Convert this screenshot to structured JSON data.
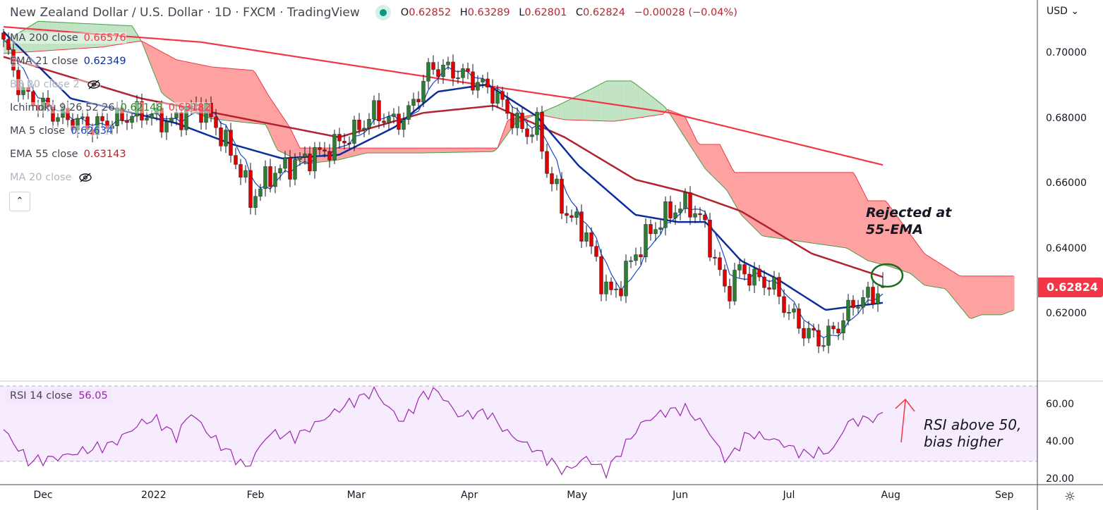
{
  "header": {
    "title": "New Zealand Dollar / U.S. Dollar · 1D · FXCM · TradingView",
    "ohlc": {
      "o_label": "O",
      "o": "0.62852",
      "h_label": "H",
      "h": "0.63289",
      "l_label": "L",
      "l": "0.62801",
      "c_label": "C",
      "c": "0.62824",
      "change": "−0.00028 (−0.04%)"
    }
  },
  "legend": [
    {
      "name": "MA 200 close",
      "value": "0.66576",
      "color": "#f23645"
    },
    {
      "name": "EMA 21 close",
      "value": "0.62349",
      "color": "#0c2d9c"
    },
    {
      "name": "BB 20 close 2",
      "value": "",
      "hidden": true
    },
    {
      "name": "Ichimoku 9 26 52 26",
      "value": "0.62148",
      "value2": "0.63182",
      "color": "#1b8a1b",
      "color2": "#f23645"
    },
    {
      "name": "MA 5 close",
      "value": "0.62634",
      "color": "#1848cc"
    },
    {
      "name": "EMA 55 close",
      "value": "0.63143",
      "color": "#b2222f"
    },
    {
      "name": "MA 20 close",
      "value": "",
      "hidden": true
    }
  ],
  "rsi_legend": {
    "name": "RSI 14 close",
    "value": "56.05",
    "color": "#9c27b0"
  },
  "currency": "USD",
  "last_price": "0.62824",
  "annotations": {
    "ema_note_1": "Rejected at",
    "ema_note_2": "55-EMA",
    "rsi_note_1": "RSI above 50,",
    "rsi_note_2": "bias higher"
  },
  "chart_data": {
    "type": "candlestick",
    "title": "New Zealand Dollar / U.S. Dollar · 1D · FXCM",
    "price_axis": {
      "ticks": [
        "0.70000",
        "0.68000",
        "0.66000",
        "0.64000",
        "0.62000"
      ],
      "tick_values": [
        0.7,
        0.68,
        0.66,
        0.64,
        0.62
      ],
      "range": [
        0.598,
        0.718
      ]
    },
    "rsi_axis": {
      "ticks": [
        "60.00",
        "40.00",
        "20.00"
      ],
      "tick_values": [
        60,
        40,
        20
      ],
      "band": [
        30,
        70
      ]
    },
    "time_axis": {
      "labels": [
        "Dec",
        "2022",
        "Feb",
        "Mar",
        "Apr",
        "May",
        "Jun",
        "Jul",
        "Aug",
        "Sep"
      ],
      "label_index": [
        8,
        30.4,
        51,
        71.4,
        94.3,
        116.1,
        137,
        159,
        179.6,
        202.6
      ]
    },
    "candle_count": 179,
    "close_keypoints": [
      [
        0,
        0.7035
      ],
      [
        3.6,
        0.688
      ],
      [
        10.7,
        0.681
      ],
      [
        17.9,
        0.6775
      ],
      [
        27.9,
        0.682
      ],
      [
        33.6,
        0.6786
      ],
      [
        39.3,
        0.684
      ],
      [
        42.1,
        0.68
      ],
      [
        47.9,
        0.6645
      ],
      [
        50,
        0.655
      ],
      [
        53.6,
        0.6624
      ],
      [
        59.3,
        0.6667
      ],
      [
        65,
        0.67
      ],
      [
        70.7,
        0.6753
      ],
      [
        75,
        0.682
      ],
      [
        79.3,
        0.6786
      ],
      [
        82.1,
        0.682
      ],
      [
        86.4,
        0.6959
      ],
      [
        90.7,
        0.6948
      ],
      [
        94.3,
        0.6926
      ],
      [
        99.3,
        0.688
      ],
      [
        102.1,
        0.682
      ],
      [
        105.7,
        0.6753
      ],
      [
        107.9,
        0.6786
      ],
      [
        110,
        0.6645
      ],
      [
        113.6,
        0.6516
      ],
      [
        117.9,
        0.645
      ],
      [
        121.4,
        0.6289
      ],
      [
        123.6,
        0.6256
      ],
      [
        127.1,
        0.6364
      ],
      [
        130.7,
        0.645
      ],
      [
        135,
        0.6516
      ],
      [
        138.6,
        0.6537
      ],
      [
        141.4,
        0.649
      ],
      [
        143.6,
        0.6386
      ],
      [
        146.4,
        0.6256
      ],
      [
        148.6,
        0.634
      ],
      [
        152.1,
        0.631
      ],
      [
        155.7,
        0.6289
      ],
      [
        158.6,
        0.6213
      ],
      [
        162.1,
        0.6148
      ],
      [
        165.7,
        0.6116
      ],
      [
        169.3,
        0.617
      ],
      [
        172.1,
        0.6235
      ],
      [
        175.7,
        0.6256
      ],
      [
        178,
        0.62824
      ]
    ],
    "last_candle": {
      "open": 0.62852,
      "high": 0.63289,
      "low": 0.62801,
      "close": 0.62824
    },
    "series": [
      {
        "name": "MA 200",
        "color": "#f23645",
        "points": [
          [
            0,
            0.7082
          ],
          [
            40,
            0.7035
          ],
          [
            94.3,
            0.6909
          ],
          [
            135,
            0.6818
          ],
          [
            178,
            0.6658
          ]
        ]
      },
      {
        "name": "EMA 55",
        "color": "#b2222f",
        "points": [
          [
            0,
            0.699
          ],
          [
            27.9,
            0.6862
          ],
          [
            67.9,
            0.6743
          ],
          [
            85,
            0.6818
          ],
          [
            99.3,
            0.684
          ],
          [
            113.6,
            0.6743
          ],
          [
            127.9,
            0.6613
          ],
          [
            139.3,
            0.657
          ],
          [
            149.3,
            0.6516
          ],
          [
            163.6,
            0.6386
          ],
          [
            178,
            0.6314
          ]
        ]
      },
      {
        "name": "EMA 21",
        "color": "#0c2d9c",
        "points": [
          [
            0,
            0.7067
          ],
          [
            13.6,
            0.6862
          ],
          [
            35,
            0.6786
          ],
          [
            46.4,
            0.6721
          ],
          [
            56.4,
            0.6678
          ],
          [
            67.9,
            0.6689
          ],
          [
            79.3,
            0.6775
          ],
          [
            87.9,
            0.6883
          ],
          [
            97.9,
            0.6905
          ],
          [
            107.9,
            0.6808
          ],
          [
            116.4,
            0.6656
          ],
          [
            127.9,
            0.6505
          ],
          [
            136.4,
            0.6483
          ],
          [
            142.1,
            0.6483
          ],
          [
            149.3,
            0.6364
          ],
          [
            156.4,
            0.631
          ],
          [
            166.4,
            0.6213
          ],
          [
            172.1,
            0.6224
          ],
          [
            178,
            0.6235
          ]
        ]
      }
    ],
    "ichimoku": {
      "span_a": [
        [
          0,
          0.7035
        ],
        [
          7,
          0.7099
        ],
        [
          26,
          0.7085
        ],
        [
          27.9,
          0.7039
        ],
        [
          32.1,
          0.6877
        ],
        [
          36.4,
          0.683
        ],
        [
          42.1,
          0.68
        ],
        [
          47.9,
          0.679
        ],
        [
          53.1,
          0.6782
        ],
        [
          55.4,
          0.6704
        ],
        [
          61.1,
          0.6661
        ],
        [
          67.9,
          0.6674
        ],
        [
          73.6,
          0.6695
        ],
        [
          85,
          0.6695
        ],
        [
          99.3,
          0.6699
        ],
        [
          100,
          0.671
        ],
        [
          103.6,
          0.6786
        ],
        [
          112.1,
          0.684
        ],
        [
          117.9,
          0.6883
        ],
        [
          122.1,
          0.6916
        ],
        [
          127.1,
          0.6916
        ],
        [
          130,
          0.6883
        ],
        [
          133.6,
          0.684
        ],
        [
          134.3,
          0.6829
        ],
        [
          137.9,
          0.6743
        ],
        [
          142.1,
          0.6645
        ],
        [
          146.4,
          0.6581
        ],
        [
          149.3,
          0.6505
        ],
        [
          153.6,
          0.644
        ],
        [
          170.7,
          0.6403
        ],
        [
          175,
          0.6364
        ],
        [
          179.3,
          0.6347
        ],
        [
          183.6,
          0.6325
        ],
        [
          186.4,
          0.6289
        ],
        [
          190.7,
          0.6278
        ],
        [
          195.7,
          0.6185
        ],
        [
          197.9,
          0.6198
        ],
        [
          202.1,
          0.6198
        ],
        [
          204.6,
          0.6213
        ]
      ],
      "span_b": [
        [
          0,
          0.7
        ],
        [
          20,
          0.702
        ],
        [
          27.9,
          0.7039
        ],
        [
          35,
          0.6981
        ],
        [
          42.1,
          0.6959
        ],
        [
          50.7,
          0.6948
        ],
        [
          53.6,
          0.6872
        ],
        [
          57.9,
          0.6775
        ],
        [
          60,
          0.671
        ],
        [
          99.3,
          0.671
        ],
        [
          100,
          0.671
        ],
        [
          102.1,
          0.6797
        ],
        [
          107.9,
          0.6814
        ],
        [
          113.6,
          0.6797
        ],
        [
          123.6,
          0.6792
        ],
        [
          133.6,
          0.6814
        ],
        [
          134.3,
          0.6829
        ],
        [
          137.9,
          0.6808
        ],
        [
          140.7,
          0.6721
        ],
        [
          145,
          0.6721
        ],
        [
          147.9,
          0.6635
        ],
        [
          172.1,
          0.6635
        ],
        [
          175,
          0.6548
        ],
        [
          178.6,
          0.6548
        ],
        [
          186.4,
          0.6386
        ],
        [
          193.6,
          0.6317
        ],
        [
          204.6,
          0.6317
        ]
      ],
      "bull_color": "#a5d6a7",
      "bear_color": "#ff9d9d"
    },
    "rsi": {
      "name": "RSI 14",
      "color": "#9c27b0",
      "last": 56.05,
      "points": [
        [
          0,
          46.8
        ],
        [
          5,
          29.8
        ],
        [
          10.7,
          31.7
        ],
        [
          16.4,
          35.5
        ],
        [
          22.1,
          39.2
        ],
        [
          27.9,
          50.6
        ],
        [
          30.7,
          52.5
        ],
        [
          35,
          43.0
        ],
        [
          37.9,
          56.2
        ],
        [
          42.1,
          43.0
        ],
        [
          49.3,
          26.0
        ],
        [
          53.6,
          44.9
        ],
        [
          59.3,
          43.0
        ],
        [
          63.6,
          50.6
        ],
        [
          69.3,
          60.0
        ],
        [
          75,
          67.5
        ],
        [
          80.7,
          50.6
        ],
        [
          85,
          65.7
        ],
        [
          87.9,
          67.5
        ],
        [
          92.1,
          54.3
        ],
        [
          97.9,
          56.2
        ],
        [
          102.1,
          44.9
        ],
        [
          107.9,
          35.5
        ],
        [
          110.7,
          29.8
        ],
        [
          113.6,
          24.2
        ],
        [
          117.9,
          31.7
        ],
        [
          122.1,
          24.2
        ],
        [
          125,
          35.5
        ],
        [
          129.3,
          50.6
        ],
        [
          133.6,
          56.2
        ],
        [
          137.9,
          58.1
        ],
        [
          142.1,
          48.7
        ],
        [
          146.4,
          29.8
        ],
        [
          150.7,
          44.9
        ],
        [
          156.4,
          41.1
        ],
        [
          162.1,
          33.6
        ],
        [
          167.9,
          35.5
        ],
        [
          170.7,
          50.6
        ],
        [
          175,
          52.5
        ],
        [
          178,
          56.05
        ]
      ]
    }
  }
}
